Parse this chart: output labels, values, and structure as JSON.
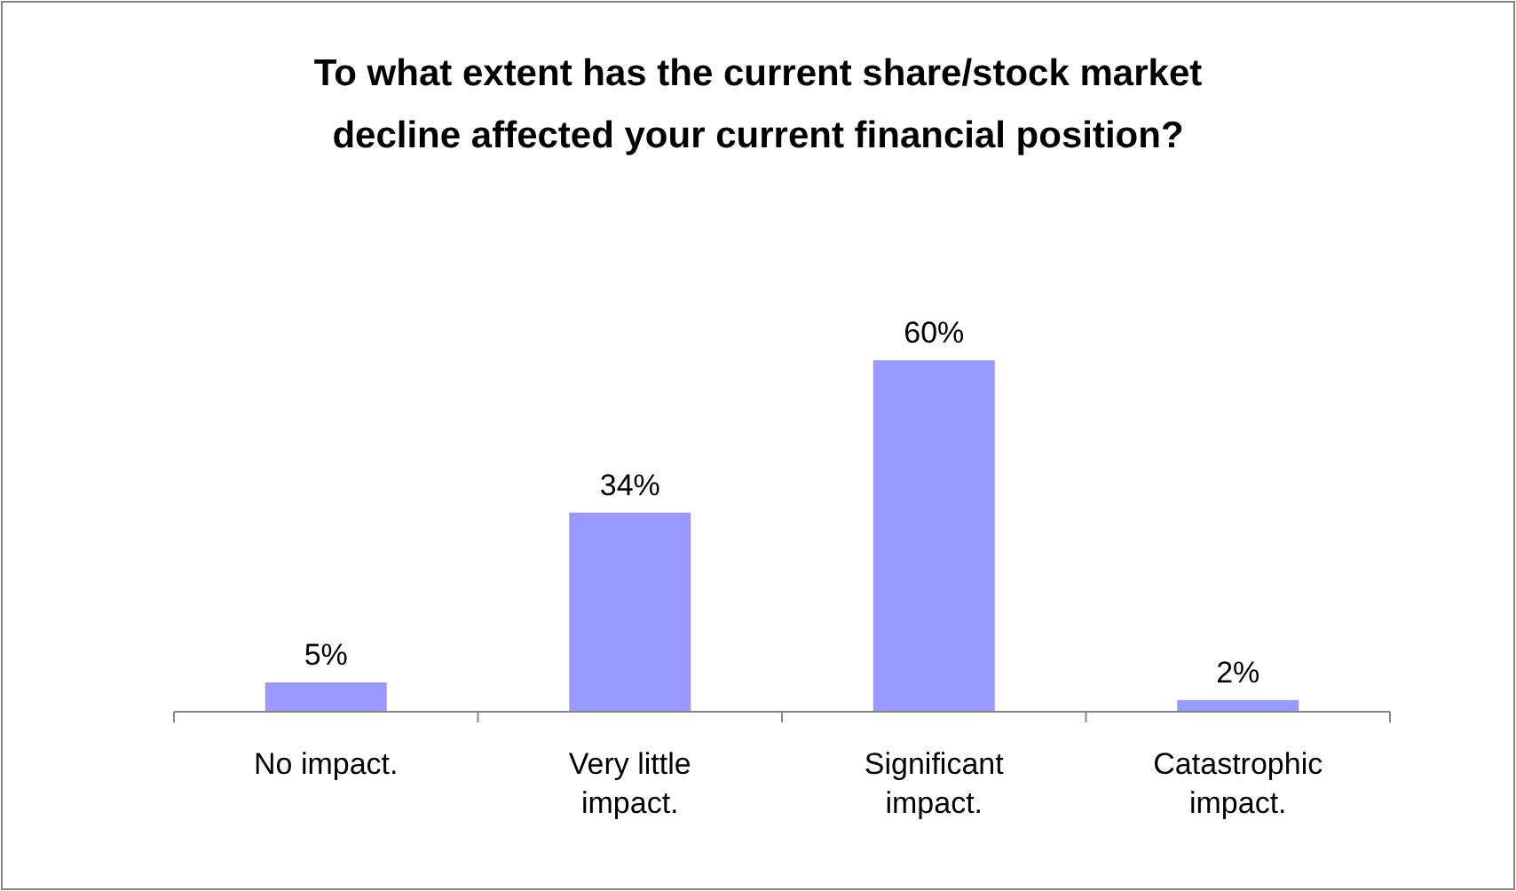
{
  "chart_data": {
    "type": "bar",
    "title": "To what extent has the current share/stock market decline affected your current financial position?",
    "categories": [
      "No impact.",
      "Very little impact.",
      "Significant impact.",
      "Catastrophic impact."
    ],
    "values": [
      5,
      34,
      60,
      2
    ],
    "value_labels": [
      "5%",
      "34%",
      "60%",
      "2%"
    ],
    "color": "#9999ff"
  }
}
